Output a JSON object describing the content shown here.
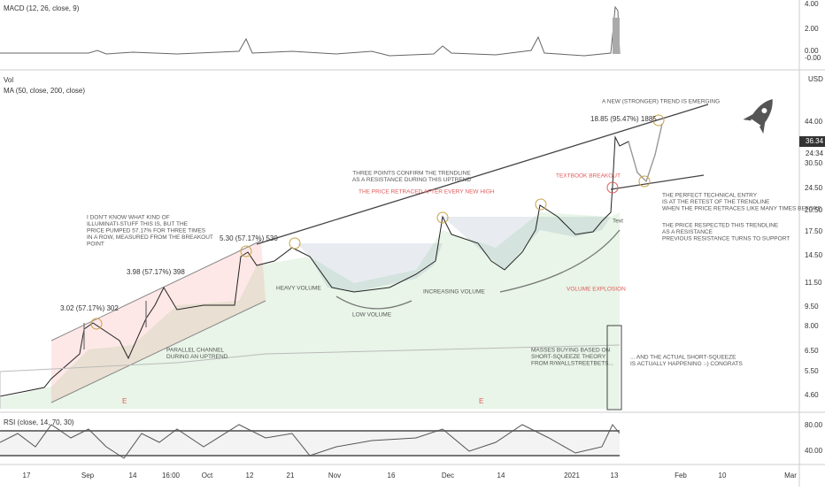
{
  "macd_panel": {
    "title": "MACD (12, 26, close, 9)",
    "axis": [
      "4.00",
      "2.00",
      "0.00",
      "-0.00"
    ]
  },
  "main_panel": {
    "vol_label": "Vol",
    "ma_label": "MA (50, close, 200, close)",
    "currency": "USD",
    "axis": [
      "44.00",
      "30.50",
      "24.50",
      "20.50",
      "17.50",
      "14.50",
      "11.50",
      "9.50",
      "8.00",
      "6.50",
      "5.50",
      "4.60"
    ],
    "last_price": "36.34",
    "countdown": "24:34"
  },
  "rsi_panel": {
    "title": "RSI (close, 14, 70, 30)",
    "axis": [
      "80.00",
      "40.00"
    ]
  },
  "time_axis": [
    "17",
    "Sep",
    "14",
    "16:00",
    "Oct",
    "12",
    "21",
    "Nov",
    "16",
    "Dec",
    "14",
    "2021",
    "13",
    "Feb",
    "10",
    "Mar"
  ],
  "annotations": {
    "gain1": "3.02 (57.17%) 302",
    "gain2": "3.98 (57.17%) 398",
    "gain3": "5.30 (57.17%) 530",
    "gain4": "18.85 (95.47%) 1885",
    "illuminati": [
      "I DON'T KNOW WHAT KIND OF",
      "ILLUMINATI-STUFF THIS IS, BUT THE",
      "PRICE PUMPED 57.17% FOR THREE TIMES",
      "IN A ROW, MEASURED FROM THE BREAKOUT",
      "POINT"
    ],
    "channel": [
      "PARALLEL CHANNEL",
      "DURING AN UPTREND"
    ],
    "three_points": [
      "THREE POINTS CONFIRM THE TRENDLINE",
      "AS A RESISTANCE DURING THIS UPTREND"
    ],
    "retraced": "THE PRICE RETRACED AFTER EVERY NEW HIGH",
    "heavy": "HEAVY VOLUME",
    "low": "LOW VOLUME",
    "increasing": "INCREASING VOLUME",
    "explosion": "VOLUME EXPLOSION",
    "breakout": "TEXTBOOK BREAKOUT",
    "new_trend": "A NEW (STRONGER) TREND IS EMERGING",
    "entry": [
      "THE PERFECT TECHNICAL ENTRY",
      "IS AT THE RETEST OF THE TRENDLINE",
      "WHEN THE PRICE RETRACES LIKE MANY TIMES BEFORE"
    ],
    "support": [
      "THE PRICE RESPECTED THIS TRENDLINE",
      "AS A RESISTANCE",
      "PREVIOUS RESISTANCE TURNS TO SUPPORT"
    ],
    "masses": [
      "MASSES BUYING BASED ON",
      "SHORT-SQUEEZE THEORY",
      "FROM R/WALLSTREETBETS..."
    ],
    "squeeze": [
      "... AND THE ACTUAL SHORT-SQUEEZE",
      "IS ACTUALLY HAPPENING :-) CONGRATS"
    ],
    "text_tag": "Text",
    "earnings": "E"
  }
}
